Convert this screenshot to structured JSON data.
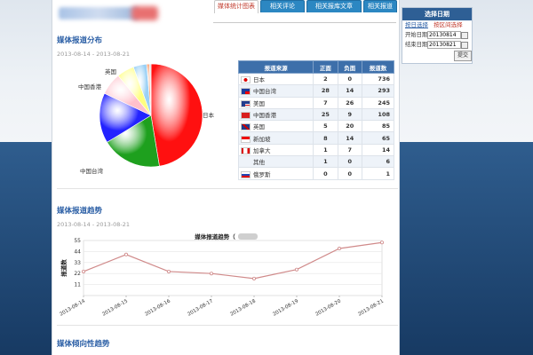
{
  "tabs": [
    "媒体统计图表",
    "相关评论",
    "相关报库文章",
    "相关报道"
  ],
  "section1": {
    "title": "媒体报道分布",
    "daterange": "2013-08-14 - 2013-08-21"
  },
  "pie": {
    "labels": [
      "日本",
      "中国台湾",
      "美国",
      "中国香港",
      "英国"
    ]
  },
  "table": {
    "headers": [
      "报道来源",
      "正面",
      "负面",
      "报道数"
    ],
    "rows": [
      {
        "name": "日本",
        "pos": "2",
        "neg": "0",
        "total": "736",
        "flag": "japan"
      },
      {
        "name": "中国台湾",
        "pos": "28",
        "neg": "14",
        "total": "293",
        "flag": "taiwan"
      },
      {
        "name": "美国",
        "pos": "7",
        "neg": "26",
        "total": "245",
        "flag": "usa"
      },
      {
        "name": "中国香港",
        "pos": "25",
        "neg": "9",
        "total": "108",
        "flag": "hongkong"
      },
      {
        "name": "英国",
        "pos": "5",
        "neg": "20",
        "total": "85",
        "flag": "uk"
      },
      {
        "name": "新加坡",
        "pos": "8",
        "neg": "14",
        "total": "65",
        "flag": "singapore"
      },
      {
        "name": "加拿大",
        "pos": "1",
        "neg": "7",
        "total": "14",
        "flag": "canada"
      },
      {
        "name": "其他",
        "pos": "1",
        "neg": "0",
        "total": "6",
        "flag": "none"
      },
      {
        "name": "俄罗斯",
        "pos": "0",
        "neg": "0",
        "total": "1",
        "flag": "russia"
      }
    ]
  },
  "section2": {
    "title": "媒体报道趋势",
    "daterange": "2013-08-14 - 2013-08-21"
  },
  "section3": {
    "title": "媒体倾向性趋势"
  },
  "sidebar": {
    "title": "选择日期",
    "link_day": "按日选择",
    "link_range": "按区间选择",
    "start_label": "开始日期",
    "start_value": "20130814",
    "end_label": "结束日期",
    "end_value": "20130821",
    "submit": "提交"
  },
  "chart_data": {
    "type": "line",
    "title": "媒体报道趋势（",
    "ylabel": "报道数",
    "categories": [
      "2013-08-14",
      "2013-08-15",
      "2013-08-16",
      "2013-08-17",
      "2013-08-18",
      "2013-08-19",
      "2013-08-20",
      "2013-08-21"
    ],
    "values": [
      24,
      41,
      24,
      22,
      17,
      26,
      47,
      53
    ],
    "yticks": [
      11,
      22,
      33,
      44,
      55
    ],
    "ylim": [
      0,
      55
    ],
    "grid": true,
    "color": "#d08a8a"
  },
  "colors": {
    "accent": "#2c87c2",
    "header": "#3d6faa",
    "title": "#2a5ea5"
  }
}
